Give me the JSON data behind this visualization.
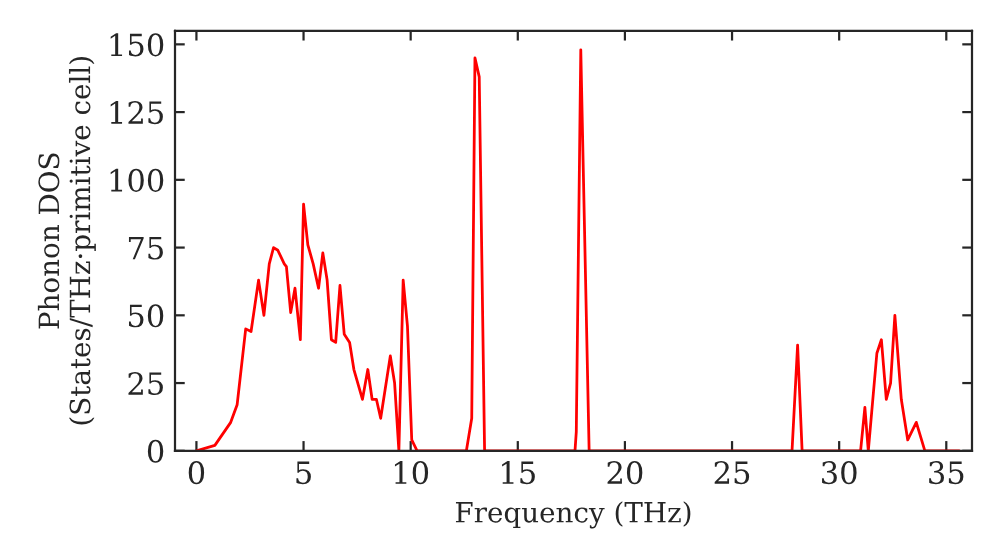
{
  "chart_data": {
    "type": "line",
    "xlabel": "Frequency (THz)",
    "ylabel": "Phonon DOS\n(States/THz·primitive cell)",
    "xlim": [
      -1,
      36.2
    ],
    "xticks": [
      0,
      5,
      10,
      15,
      20,
      25,
      30,
      35
    ],
    "ylim": [
      0,
      155
    ],
    "yticks": [
      0,
      25,
      50,
      75,
      100,
      125,
      150
    ],
    "grid": false,
    "legend": false,
    "series": [
      {
        "color": "#ff0000",
        "x": [
          0,
          0.86,
          1.6,
          1.9,
          2.3,
          2.55,
          2.9,
          3.15,
          3.4,
          3.6,
          3.8,
          4.1,
          4.2,
          4.4,
          4.6,
          4.85,
          5.0,
          5.2,
          5.45,
          5.7,
          5.9,
          6.1,
          6.3,
          6.5,
          6.7,
          6.9,
          7.15,
          7.35,
          7.75,
          8.0,
          8.2,
          8.4,
          8.6,
          9.05,
          9.25,
          9.45,
          9.65,
          9.85,
          10.05,
          10.3,
          12.6,
          12.85,
          13.0,
          13.2,
          13.45,
          17.67,
          17.73,
          17.94,
          18.33,
          27.8,
          28.06,
          28.27,
          31.0,
          31.2,
          31.36,
          31.76,
          31.97,
          32.2,
          32.4,
          32.6,
          32.9,
          33.2,
          33.6,
          34.0,
          35.6
        ],
        "values": [
          0,
          2,
          10.5,
          17,
          45,
          44,
          63,
          50,
          69,
          75,
          74,
          69,
          68,
          51,
          60,
          41,
          91,
          76,
          69,
          60,
          73,
          63,
          41,
          40,
          61,
          43,
          40,
          30,
          19,
          30,
          19,
          19,
          12,
          35,
          25,
          0,
          63,
          46,
          4,
          0,
          0,
          12,
          145,
          138,
          0,
          0,
          7,
          148,
          0,
          0,
          39,
          0,
          0,
          16,
          0,
          36,
          41,
          19,
          25,
          50,
          19,
          4,
          10.5,
          0,
          0
        ]
      }
    ]
  }
}
